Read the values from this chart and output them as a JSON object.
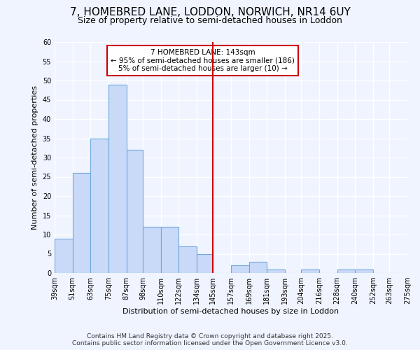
{
  "title": "7, HOMEBRED LANE, LODDON, NORWICH, NR14 6UY",
  "subtitle": "Size of property relative to semi-detached houses in Loddon",
  "xlabel": "Distribution of semi-detached houses by size in Loddon",
  "ylabel": "Number of semi-detached properties",
  "bin_labels": [
    "39sqm",
    "51sqm",
    "63sqm",
    "75sqm",
    "87sqm",
    "98sqm",
    "110sqm",
    "122sqm",
    "134sqm",
    "145sqm",
    "157sqm",
    "169sqm",
    "181sqm",
    "193sqm",
    "204sqm",
    "216sqm",
    "228sqm",
    "240sqm",
    "252sqm",
    "263sqm",
    "275sqm"
  ],
  "bin_edges": [
    39,
    51,
    63,
    75,
    87,
    98,
    110,
    122,
    134,
    145,
    157,
    169,
    181,
    193,
    204,
    216,
    228,
    240,
    252,
    263,
    275
  ],
  "bar_heights": [
    9,
    26,
    35,
    49,
    32,
    12,
    12,
    7,
    5,
    0,
    2,
    3,
    1,
    0,
    1,
    0,
    1,
    1,
    0,
    0,
    0
  ],
  "bar_color": "#c9daf8",
  "bar_edge_color": "#6fa8dc",
  "vline_x": 145,
  "vline_color": "#cc0000",
  "annotation_title": "7 HOMEBRED LANE: 143sqm",
  "annotation_line1": "← 95% of semi-detached houses are smaller (186)",
  "annotation_line2": "5% of semi-detached houses are larger (10) →",
  "annotation_box_color": "#cc0000",
  "ylim": [
    0,
    60
  ],
  "yticks": [
    0,
    5,
    10,
    15,
    20,
    25,
    30,
    35,
    40,
    45,
    50,
    55,
    60
  ],
  "footer1": "Contains HM Land Registry data © Crown copyright and database right 2025.",
  "footer2": "Contains public sector information licensed under the Open Government Licence v3.0.",
  "bg_color": "#f0f4ff",
  "grid_color": "#ffffff",
  "title_fontsize": 11,
  "subtitle_fontsize": 9,
  "axis_label_fontsize": 8,
  "tick_fontsize": 7,
  "annotation_fontsize": 7.5,
  "footer_fontsize": 6.5
}
